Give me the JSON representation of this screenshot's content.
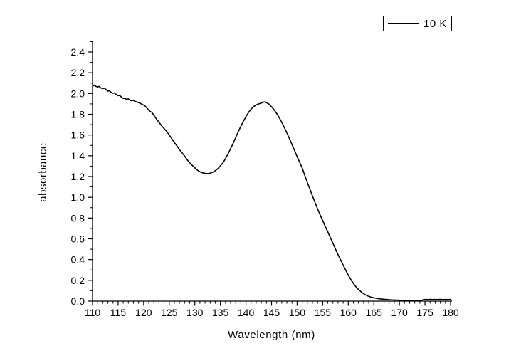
{
  "figure": {
    "background": "#ffffff",
    "line_color": "#000000",
    "axis_color": "#000000"
  },
  "legend": {
    "label": "10 K",
    "sample_line_color": "#000000",
    "border_color": "#000000",
    "position": "top-right"
  },
  "chart_data": {
    "type": "line",
    "title": "",
    "xlabel": "Wavelength (nm)",
    "ylabel": "absorbance",
    "xlim": [
      110,
      180
    ],
    "ylim": [
      0.0,
      2.4
    ],
    "grid": false,
    "legend_position": "top-right",
    "x_major_ticks": [
      110,
      115,
      120,
      125,
      130,
      135,
      140,
      145,
      150,
      155,
      160,
      165,
      170,
      175,
      180
    ],
    "x_tick_labels": [
      "110",
      "115",
      "120",
      "125",
      "130",
      "135",
      "140",
      "145",
      "150",
      "155",
      "160",
      "165",
      "170",
      "175",
      "180"
    ],
    "x_minor_step": 1,
    "y_major_ticks": [
      0.0,
      0.2,
      0.4,
      0.6,
      0.8,
      1.0,
      1.2,
      1.4,
      1.6,
      1.8,
      2.0,
      2.2,
      2.4
    ],
    "y_tick_labels": [
      "0.0",
      "0.2",
      "0.4",
      "0.6",
      "0.8",
      "1.0",
      "1.2",
      "1.4",
      "1.6",
      "1.8",
      "2.0",
      "2.2",
      "2.4"
    ],
    "y_minor_step": 0.1,
    "series": [
      {
        "name": "10 K",
        "color": "#000000",
        "points": [
          [
            110,
            2.085
          ],
          [
            110.2,
            2.075
          ],
          [
            110.4,
            2.082
          ],
          [
            110.7,
            2.068
          ],
          [
            111,
            2.062
          ],
          [
            111.3,
            2.068
          ],
          [
            111.6,
            2.054
          ],
          [
            112,
            2.048
          ],
          [
            112.3,
            2.052
          ],
          [
            112.6,
            2.04
          ],
          [
            113,
            2.022
          ],
          [
            113.3,
            2.028
          ],
          [
            113.6,
            2.012
          ],
          [
            114,
            2.002
          ],
          [
            114.3,
            2.006
          ],
          [
            114.6,
            1.992
          ],
          [
            115,
            1.978
          ],
          [
            115.3,
            1.982
          ],
          [
            115.6,
            1.968
          ],
          [
            116,
            1.952
          ],
          [
            116.3,
            1.956
          ],
          [
            116.6,
            1.944
          ],
          [
            117,
            1.948
          ],
          [
            117.3,
            1.936
          ],
          [
            117.6,
            1.93
          ],
          [
            118,
            1.934
          ],
          [
            118.3,
            1.924
          ],
          [
            118.6,
            1.92
          ],
          [
            119,
            1.912
          ],
          [
            119.3,
            1.906
          ],
          [
            119.6,
            1.898
          ],
          [
            120,
            1.888
          ],
          [
            120.3,
            1.878
          ],
          [
            120.6,
            1.862
          ],
          [
            121,
            1.84
          ],
          [
            121.3,
            1.826
          ],
          [
            121.6,
            1.818
          ],
          [
            122,
            1.79
          ],
          [
            122.5,
            1.755
          ],
          [
            123,
            1.722
          ],
          [
            123.5,
            1.69
          ],
          [
            124,
            1.662
          ],
          [
            124.5,
            1.635
          ],
          [
            125,
            1.6
          ],
          [
            125.5,
            1.565
          ],
          [
            126,
            1.528
          ],
          [
            126.5,
            1.495
          ],
          [
            127,
            1.458
          ],
          [
            127.5,
            1.428
          ],
          [
            128,
            1.398
          ],
          [
            128.5,
            1.362
          ],
          [
            129,
            1.332
          ],
          [
            129.5,
            1.308
          ],
          [
            130,
            1.285
          ],
          [
            130.5,
            1.262
          ],
          [
            131,
            1.246
          ],
          [
            131.5,
            1.236
          ],
          [
            132,
            1.23
          ],
          [
            132.5,
            1.228
          ],
          [
            133,
            1.232
          ],
          [
            133.5,
            1.242
          ],
          [
            134,
            1.256
          ],
          [
            134.5,
            1.276
          ],
          [
            135,
            1.302
          ],
          [
            135.5,
            1.332
          ],
          [
            136,
            1.372
          ],
          [
            136.5,
            1.418
          ],
          [
            137,
            1.468
          ],
          [
            137.5,
            1.52
          ],
          [
            138,
            1.578
          ],
          [
            138.5,
            1.632
          ],
          [
            139,
            1.684
          ],
          [
            139.5,
            1.732
          ],
          [
            140,
            1.778
          ],
          [
            140.5,
            1.818
          ],
          [
            141,
            1.85
          ],
          [
            141.5,
            1.874
          ],
          [
            142,
            1.89
          ],
          [
            142.5,
            1.9
          ],
          [
            143,
            1.908
          ],
          [
            143.3,
            1.914
          ],
          [
            143.6,
            1.92
          ],
          [
            144,
            1.912
          ],
          [
            144.5,
            1.898
          ],
          [
            145,
            1.872
          ],
          [
            145.5,
            1.843
          ],
          [
            146,
            1.808
          ],
          [
            146.5,
            1.768
          ],
          [
            147,
            1.722
          ],
          [
            147.5,
            1.672
          ],
          [
            148,
            1.62
          ],
          [
            148.5,
            1.566
          ],
          [
            149,
            1.51
          ],
          [
            149.5,
            1.452
          ],
          [
            150,
            1.392
          ],
          [
            150.5,
            1.338
          ],
          [
            151,
            1.282
          ],
          [
            151.5,
            1.212
          ],
          [
            152,
            1.142
          ],
          [
            152.5,
            1.078
          ],
          [
            153,
            1.012
          ],
          [
            153.5,
            0.95
          ],
          [
            154,
            0.888
          ],
          [
            154.5,
            0.83
          ],
          [
            155,
            0.775
          ],
          [
            155.5,
            0.72
          ],
          [
            156,
            0.668
          ],
          [
            156.5,
            0.612
          ],
          [
            157,
            0.558
          ],
          [
            157.5,
            0.502
          ],
          [
            158,
            0.448
          ],
          [
            158.5,
            0.398
          ],
          [
            159,
            0.348
          ],
          [
            159.5,
            0.298
          ],
          [
            160,
            0.25
          ],
          [
            160.5,
            0.208
          ],
          [
            161,
            0.17
          ],
          [
            161.5,
            0.138
          ],
          [
            162,
            0.112
          ],
          [
            162.5,
            0.09
          ],
          [
            163,
            0.072
          ],
          [
            163.5,
            0.057
          ],
          [
            164,
            0.046
          ],
          [
            164.5,
            0.038
          ],
          [
            165,
            0.032
          ],
          [
            165.5,
            0.027
          ],
          [
            166,
            0.023
          ],
          [
            166.5,
            0.02
          ],
          [
            167,
            0.018
          ],
          [
            167.5,
            0.016
          ],
          [
            168,
            0.014
          ],
          [
            168.5,
            0.012
          ],
          [
            169,
            0.011
          ],
          [
            169.5,
            0.01
          ],
          [
            170,
            0.009
          ],
          [
            170.5,
            0.008
          ],
          [
            171,
            0.007
          ],
          [
            171.5,
            0.006
          ],
          [
            172,
            0.005
          ],
          [
            172.5,
            0.004
          ],
          [
            173,
            0.003
          ],
          [
            173.5,
            0.003
          ],
          [
            174,
            0.004
          ],
          [
            174.5,
            0.01
          ],
          [
            175,
            0.016
          ],
          [
            175.5,
            0.015
          ],
          [
            176,
            0.017
          ],
          [
            176.5,
            0.015
          ],
          [
            177,
            0.016
          ],
          [
            177.5,
            0.015
          ],
          [
            178,
            0.017
          ],
          [
            178.5,
            0.015
          ],
          [
            179,
            0.016
          ],
          [
            179.5,
            0.015
          ],
          [
            180,
            0.016
          ]
        ]
      }
    ]
  }
}
